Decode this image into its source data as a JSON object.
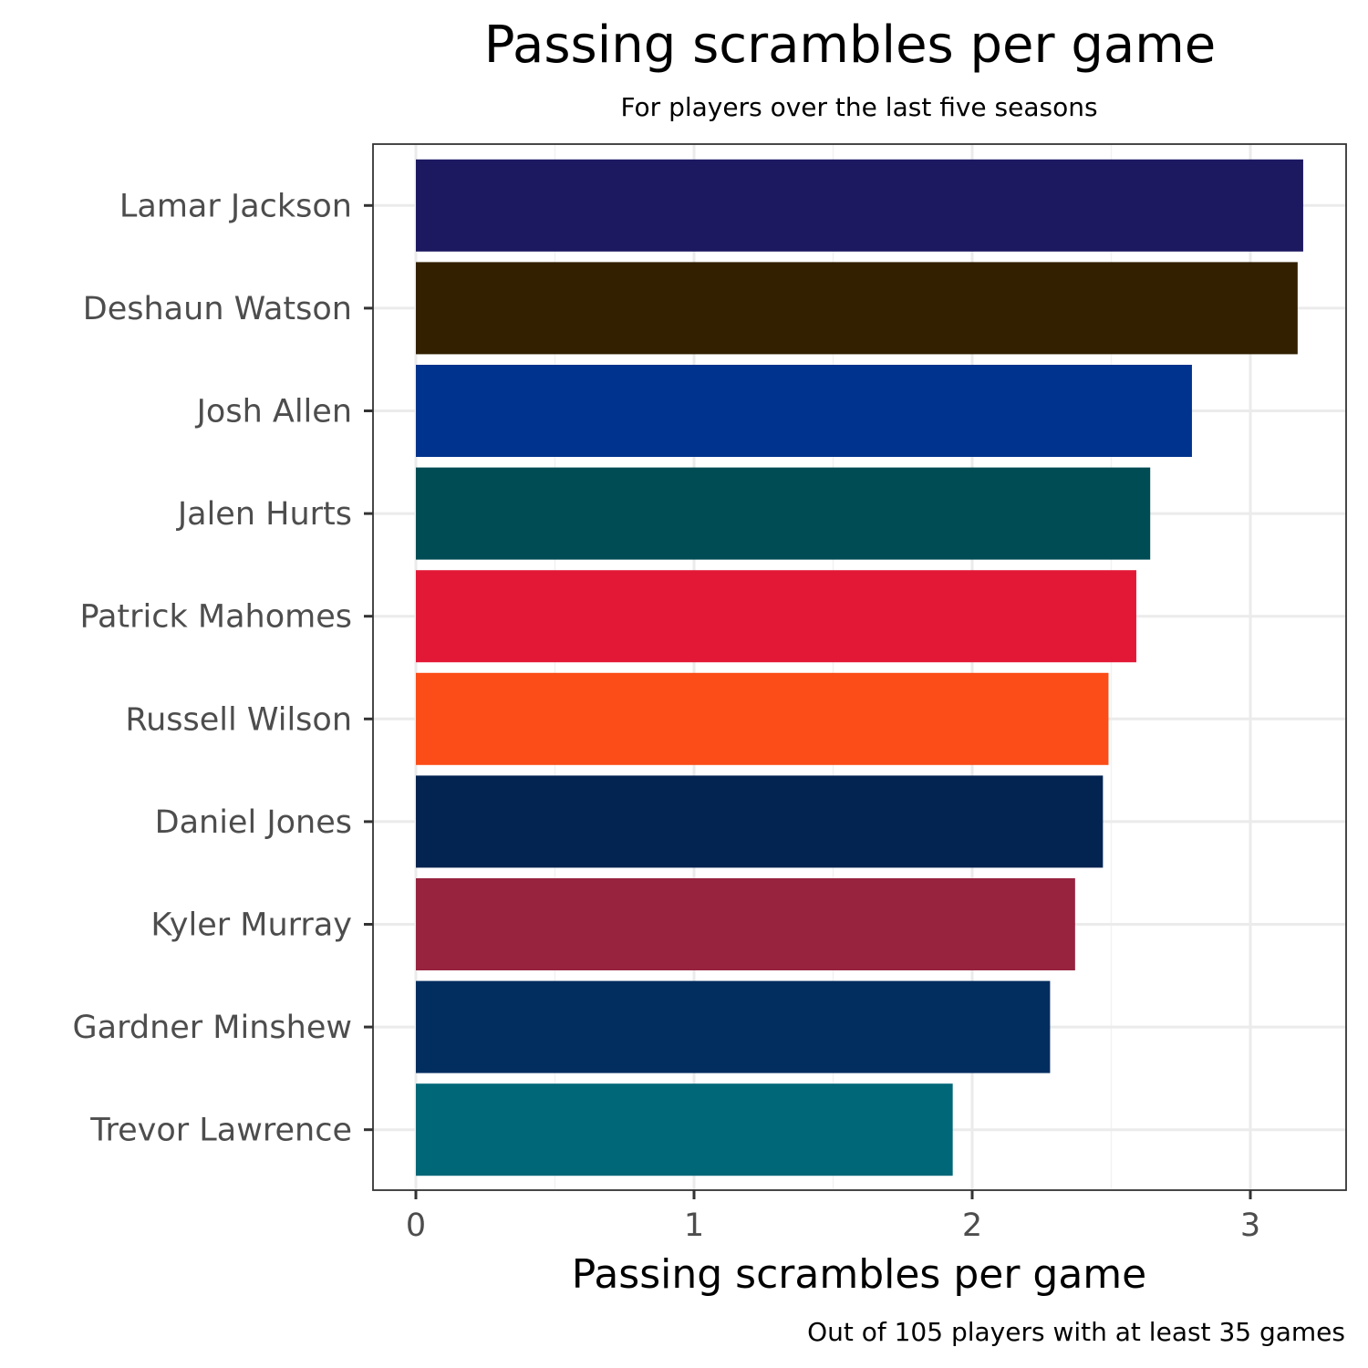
{
  "chart_data": {
    "type": "bar",
    "orientation": "horizontal",
    "title": "Passing scrambles per game",
    "subtitle": "For players over the last five seasons",
    "xlabel": "Passing scrambles per game",
    "ylabel": "",
    "caption": "Out of 105 players with at least 35 games",
    "xlim": [
      0,
      3.33
    ],
    "x_ticks": [
      0,
      1,
      2,
      3
    ],
    "x_tick_labels": [
      "0",
      "1",
      "2",
      "3"
    ],
    "grid": true,
    "categories": [
      "Lamar Jackson",
      "Deshaun Watson",
      "Josh Allen",
      "Jalen Hurts",
      "Patrick Mahomes",
      "Russell Wilson",
      "Daniel Jones",
      "Kyler Murray",
      "Gardner Minshew",
      "Trevor Lawrence"
    ],
    "values": [
      3.19,
      3.17,
      2.79,
      2.64,
      2.59,
      2.49,
      2.47,
      2.37,
      2.28,
      1.93
    ],
    "colors": [
      "#1d1961",
      "#322000",
      "#00338d",
      "#004c54",
      "#e31837",
      "#fc4c17",
      "#032351",
      "#97233f",
      "#022d5f",
      "#006778"
    ]
  }
}
